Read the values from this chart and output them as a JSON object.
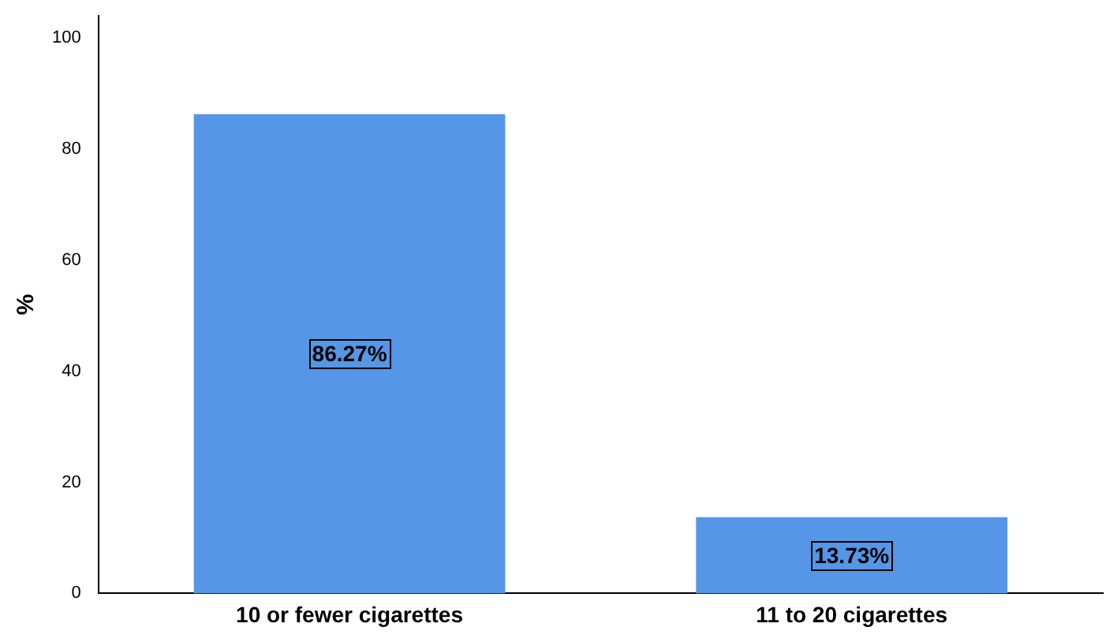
{
  "chart_data": {
    "type": "bar",
    "ylabel": "%",
    "categories": [
      "10 or fewer cigarettes",
      "11 to 20 cigarettes"
    ],
    "values": [
      86.27,
      13.73
    ],
    "color": "#5596e6",
    "value_labels": [
      "86.27%",
      "13.73%"
    ],
    "ylim": [
      0,
      104
    ],
    "yticks": [
      0,
      20,
      40,
      60,
      80,
      100
    ],
    "grid": false,
    "legend": false
  }
}
